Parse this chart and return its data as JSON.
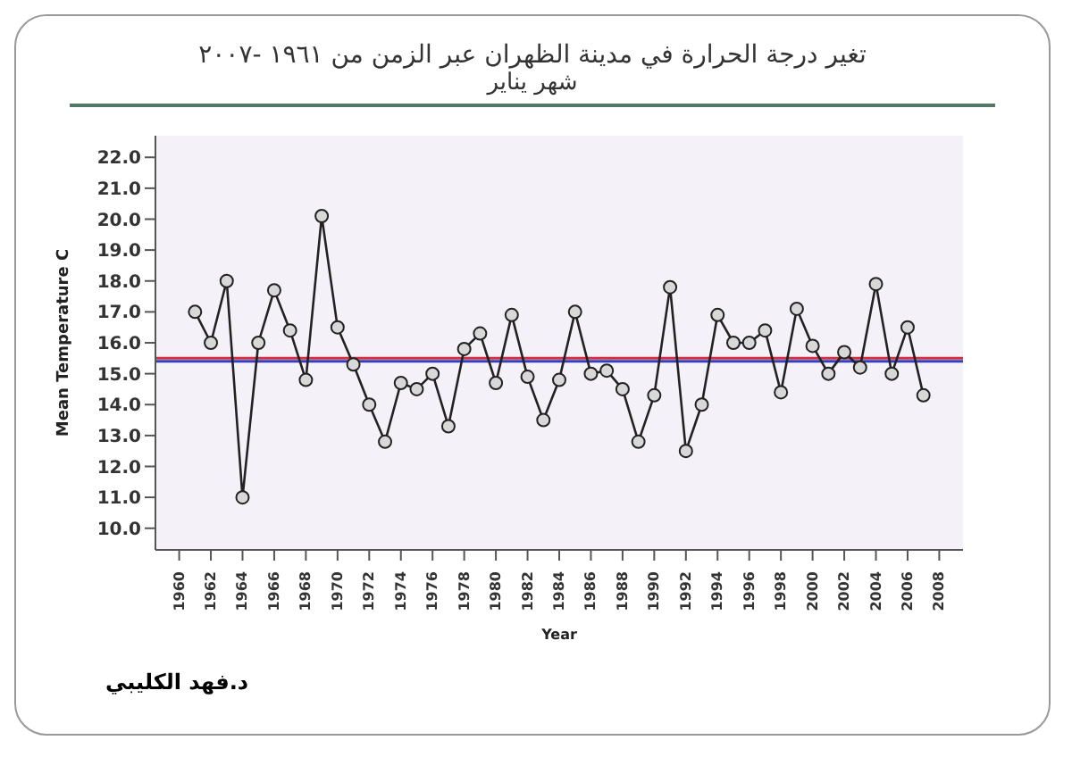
{
  "chart_data": {
    "type": "line",
    "title": "تغير درجة الحرارة في مدينة الظهران عبر الزمن من ١٩٦١ -٢٠٠٧",
    "subtitle": "شهر يناير",
    "xlabel": "Year",
    "ylabel": "Mean Temperature C",
    "x": [
      1961,
      1962,
      1963,
      1964,
      1965,
      1966,
      1967,
      1968,
      1969,
      1970,
      1971,
      1972,
      1973,
      1974,
      1975,
      1976,
      1977,
      1978,
      1979,
      1980,
      1981,
      1982,
      1983,
      1984,
      1985,
      1986,
      1987,
      1988,
      1989,
      1990,
      1991,
      1992,
      1993,
      1994,
      1995,
      1996,
      1997,
      1998,
      1999,
      2000,
      2001,
      2002,
      2003,
      2004,
      2005,
      2006,
      2007
    ],
    "series": [
      {
        "color": "#222222",
        "values": [
          17.0,
          16.0,
          18.0,
          11.0,
          16.0,
          17.7,
          16.4,
          14.8,
          20.1,
          16.5,
          15.3,
          14.0,
          12.8,
          14.7,
          14.5,
          15.0,
          13.3,
          15.8,
          16.3,
          14.7,
          16.9,
          14.9,
          13.5,
          14.8,
          17.0,
          15.0,
          15.1,
          14.5,
          12.8,
          14.3,
          17.8,
          12.5,
          14.0,
          16.9,
          16.0,
          16.0,
          16.4,
          14.4,
          17.1,
          15.9,
          15.0,
          15.7,
          15.2,
          17.9,
          15.0,
          16.5,
          14.3
        ]
      }
    ],
    "xlim": [
      1958.5,
      2009.5
    ],
    "xticks": [
      1960,
      1962,
      1964,
      1966,
      1968,
      1970,
      1972,
      1974,
      1976,
      1978,
      1980,
      1982,
      1984,
      1986,
      1988,
      1990,
      1992,
      1994,
      1996,
      1998,
      2000,
      2002,
      2004,
      2006,
      2008
    ],
    "ylim": [
      9.3,
      22.7
    ],
    "yticks": [
      {
        "value": 10,
        "label": "10.0"
      },
      {
        "value": 11,
        "label": "11.0"
      },
      {
        "value": 12,
        "label": "12.0"
      },
      {
        "value": 13,
        "label": "13.0"
      },
      {
        "value": 14,
        "label": "14.0"
      },
      {
        "value": 15,
        "label": "15.0"
      },
      {
        "value": 16,
        "label": "16.0"
      },
      {
        "value": 17,
        "label": "17.0"
      },
      {
        "value": 18,
        "label": "18.0"
      },
      {
        "value": 19,
        "label": "19.0"
      },
      {
        "value": 20,
        "label": "20.0"
      },
      {
        "value": 21,
        "label": "21.0"
      },
      {
        "value": 22,
        "label": "22.0"
      }
    ],
    "ref_lines": [
      {
        "axis": "y",
        "value": 15.5,
        "color": "#d03040"
      },
      {
        "axis": "y",
        "value": 15.4,
        "color": "#3040c0"
      }
    ],
    "marker": "circle",
    "grid": false,
    "annotations": [
      "د.فهد الكليبي"
    ]
  }
}
